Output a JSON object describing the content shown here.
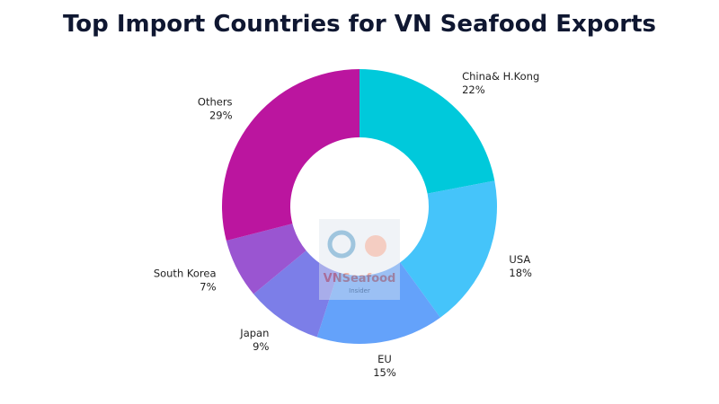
{
  "chart_data": {
    "type": "pie",
    "style": "donut",
    "title": "Top Import Countries for VN Seafood Exports",
    "slices": [
      {
        "label": "China& H.Kong",
        "pct_label": "22%",
        "value": 22,
        "color": "#00c9db"
      },
      {
        "label": "USA",
        "pct_label": "18%",
        "value": 18,
        "color": "#45c4fa"
      },
      {
        "label": "EU",
        "pct_label": "15%",
        "value": 15,
        "color": "#64a2fa"
      },
      {
        "label": "Japan",
        "pct_label": "9%",
        "value": 9,
        "color": "#7c7ee8"
      },
      {
        "label": "South Korea",
        "pct_label": "7%",
        "value": 7,
        "color": "#9a55d1"
      },
      {
        "label": "Others",
        "pct_label": "29%",
        "value": 29,
        "color": "#bb159f"
      }
    ],
    "legend": "none",
    "start": "top, clockwise"
  },
  "watermark": {
    "brand": "VNSeafood",
    "tagline": "Insider"
  }
}
